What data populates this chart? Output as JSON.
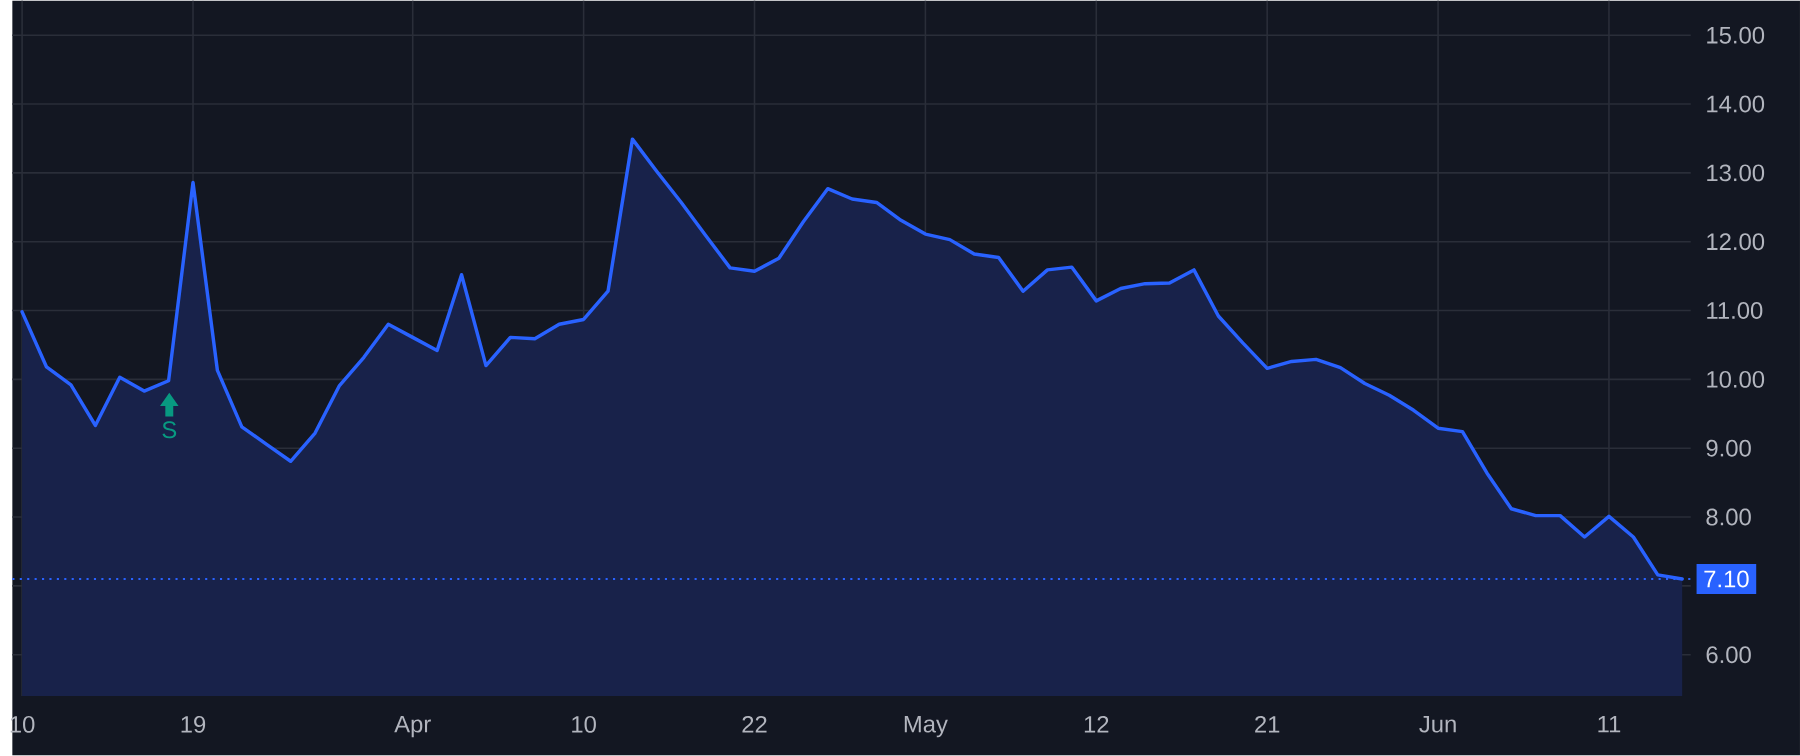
{
  "chart_data": {
    "type": "area",
    "categories": [
      "10",
      null,
      null,
      null,
      null,
      null,
      null,
      "19",
      null,
      null,
      null,
      null,
      null,
      null,
      null,
      null,
      "Apr",
      null,
      null,
      null,
      null,
      null,
      null,
      "10",
      null,
      null,
      null,
      null,
      null,
      null,
      "22",
      null,
      null,
      null,
      null,
      null,
      null,
      "May",
      null,
      null,
      null,
      null,
      null,
      null,
      "12",
      null,
      null,
      null,
      null,
      null,
      null,
      "21",
      null,
      null,
      null,
      null,
      null,
      null,
      "Jun",
      null,
      null,
      null,
      null,
      null,
      null,
      "11",
      null,
      null,
      null
    ],
    "series": [
      {
        "color": "#2962ff",
        "values": [
          10.98,
          10.18,
          9.92,
          9.33,
          10.03,
          9.83,
          9.98,
          12.86,
          10.13,
          9.31,
          9.06,
          8.81,
          9.22,
          9.91,
          10.32,
          10.8,
          10.61,
          10.42,
          11.52,
          10.2,
          10.61,
          10.59,
          10.8,
          10.87,
          11.28,
          13.49,
          13.02,
          12.57,
          12.09,
          11.62,
          11.57,
          11.76,
          12.29,
          12.77,
          12.62,
          12.57,
          12.31,
          12.11,
          12.03,
          11.82,
          11.77,
          11.28,
          11.59,
          11.63,
          11.14,
          11.32,
          11.39,
          11.4,
          11.59,
          10.92,
          10.53,
          10.16,
          10.26,
          10.29,
          10.17,
          9.94,
          9.77,
          9.55,
          9.29,
          9.24,
          8.64,
          8.12,
          8.02,
          8.02,
          7.71,
          8.01,
          7.71,
          7.16,
          7.1
        ]
      }
    ],
    "ylim": [
      5.4,
      15.5
    ],
    "yticks": [
      {
        "value": 6,
        "label": "6.00"
      },
      {
        "value": 7,
        "label": null
      },
      {
        "value": 8,
        "label": "8.00"
      },
      {
        "value": 9,
        "label": "9.00"
      },
      {
        "value": 10,
        "label": "10.00"
      },
      {
        "value": 11,
        "label": "11.00"
      },
      {
        "value": 12,
        "label": "12.00"
      },
      {
        "value": 13,
        "label": "13.00"
      },
      {
        "value": 14,
        "label": "14.00"
      },
      {
        "value": 15,
        "label": "15.00"
      }
    ],
    "ref_lines": [
      {
        "axis": "y",
        "value": 7.1,
        "label": "7.10",
        "color": "#2962ff",
        "line_style": "dotted"
      }
    ],
    "annotations": [
      "S"
    ],
    "grid": true
  }
}
